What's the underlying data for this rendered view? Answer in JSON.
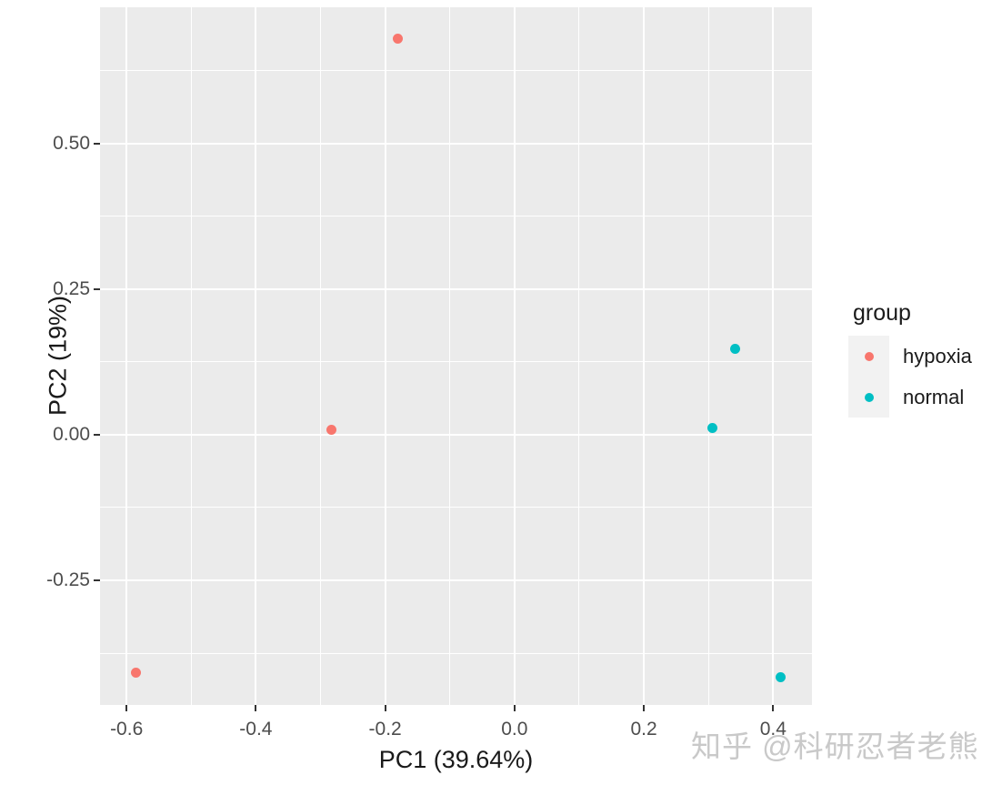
{
  "chart_data": {
    "type": "scatter",
    "title": "",
    "xlabel": "PC1 (39.64%)",
    "ylabel": "PC2 (19%)",
    "xlim": [
      -0.641,
      0.46
    ],
    "ylim": [
      -0.464,
      0.734
    ],
    "x_tick_values": [
      -0.6,
      -0.4,
      -0.2,
      0.0,
      0.2,
      0.4
    ],
    "x_tick_labels": [
      "-0.6",
      "-0.4",
      "-0.2",
      "0.0",
      "0.2",
      "0.4"
    ],
    "y_tick_values": [
      -0.25,
      0.0,
      0.25,
      0.5
    ],
    "y_tick_labels": [
      "-0.25",
      "0.00",
      "0.25",
      "0.50"
    ],
    "x_minor_tick_values": [
      -0.5,
      -0.3,
      -0.1,
      0.1,
      0.3
    ],
    "y_minor_tick_values": [
      -0.375,
      -0.125,
      0.125,
      0.375,
      0.625
    ],
    "grid": "on",
    "legend": {
      "title": "group",
      "position": "right",
      "entries": [
        {
          "label": "hypoxia",
          "color": "#f8766d"
        },
        {
          "label": "normal",
          "color": "#00bfc4"
        }
      ]
    },
    "series": [
      {
        "name": "hypoxia",
        "color": "#f8766d",
        "points": [
          {
            "x": -0.18,
            "y": 0.68
          },
          {
            "x": -0.283,
            "y": 0.008
          },
          {
            "x": -0.586,
            "y": -0.409
          }
        ]
      },
      {
        "name": "normal",
        "color": "#00bfc4",
        "points": [
          {
            "x": 0.341,
            "y": 0.148
          },
          {
            "x": 0.306,
            "y": 0.011
          },
          {
            "x": 0.411,
            "y": -0.416
          }
        ]
      }
    ],
    "colors": {
      "panel_bg": "#ebebeb",
      "grid": "#ffffff",
      "tick_mark": "#333333",
      "tick_label": "#4d4d4d",
      "axis_title": "#1a1a1a",
      "legend_title": "#1a1a1a",
      "legend_label": "#1a1a1a",
      "legend_key_bg": "#f2f2f2"
    }
  },
  "watermark": {
    "text": "知乎 @科研忍者老熊",
    "color": "#c9c9c9"
  }
}
